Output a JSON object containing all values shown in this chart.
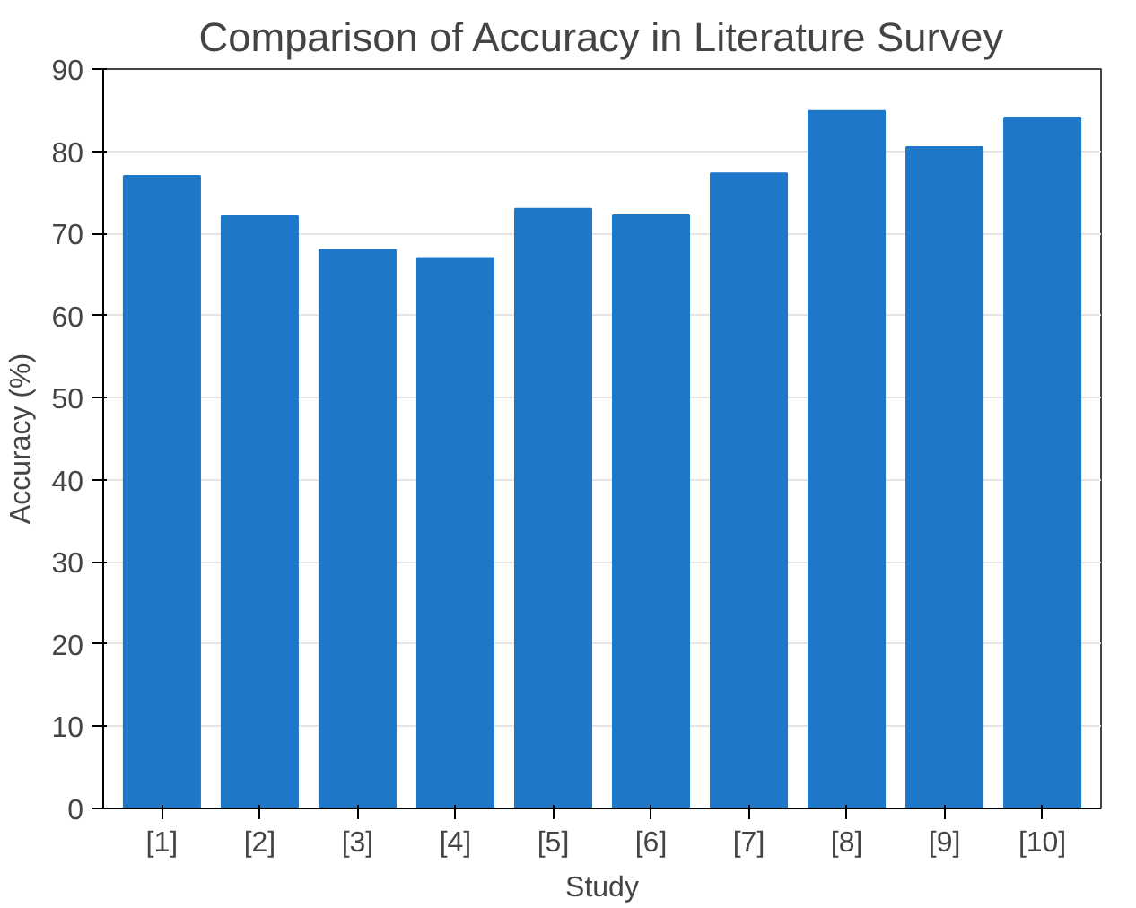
{
  "chart_data": {
    "type": "bar",
    "title": "Comparison of Accuracy in Literature Survey",
    "xlabel": "Study",
    "ylabel": "Accuracy (%)",
    "categories": [
      "[1]",
      "[2]",
      "[3]",
      "[4]",
      "[5]",
      "[6]",
      "[7]",
      "[8]",
      "[9]",
      "[10]"
    ],
    "values": [
      77.0,
      72.1,
      68.0,
      67.0,
      73.0,
      72.2,
      77.3,
      84.9,
      80.5,
      84.1
    ],
    "color": "#1f77c9",
    "ylim": [
      0,
      90
    ],
    "yticks": [
      0,
      10,
      20,
      30,
      40,
      50,
      60,
      70,
      80,
      90
    ],
    "grid": "y"
  }
}
